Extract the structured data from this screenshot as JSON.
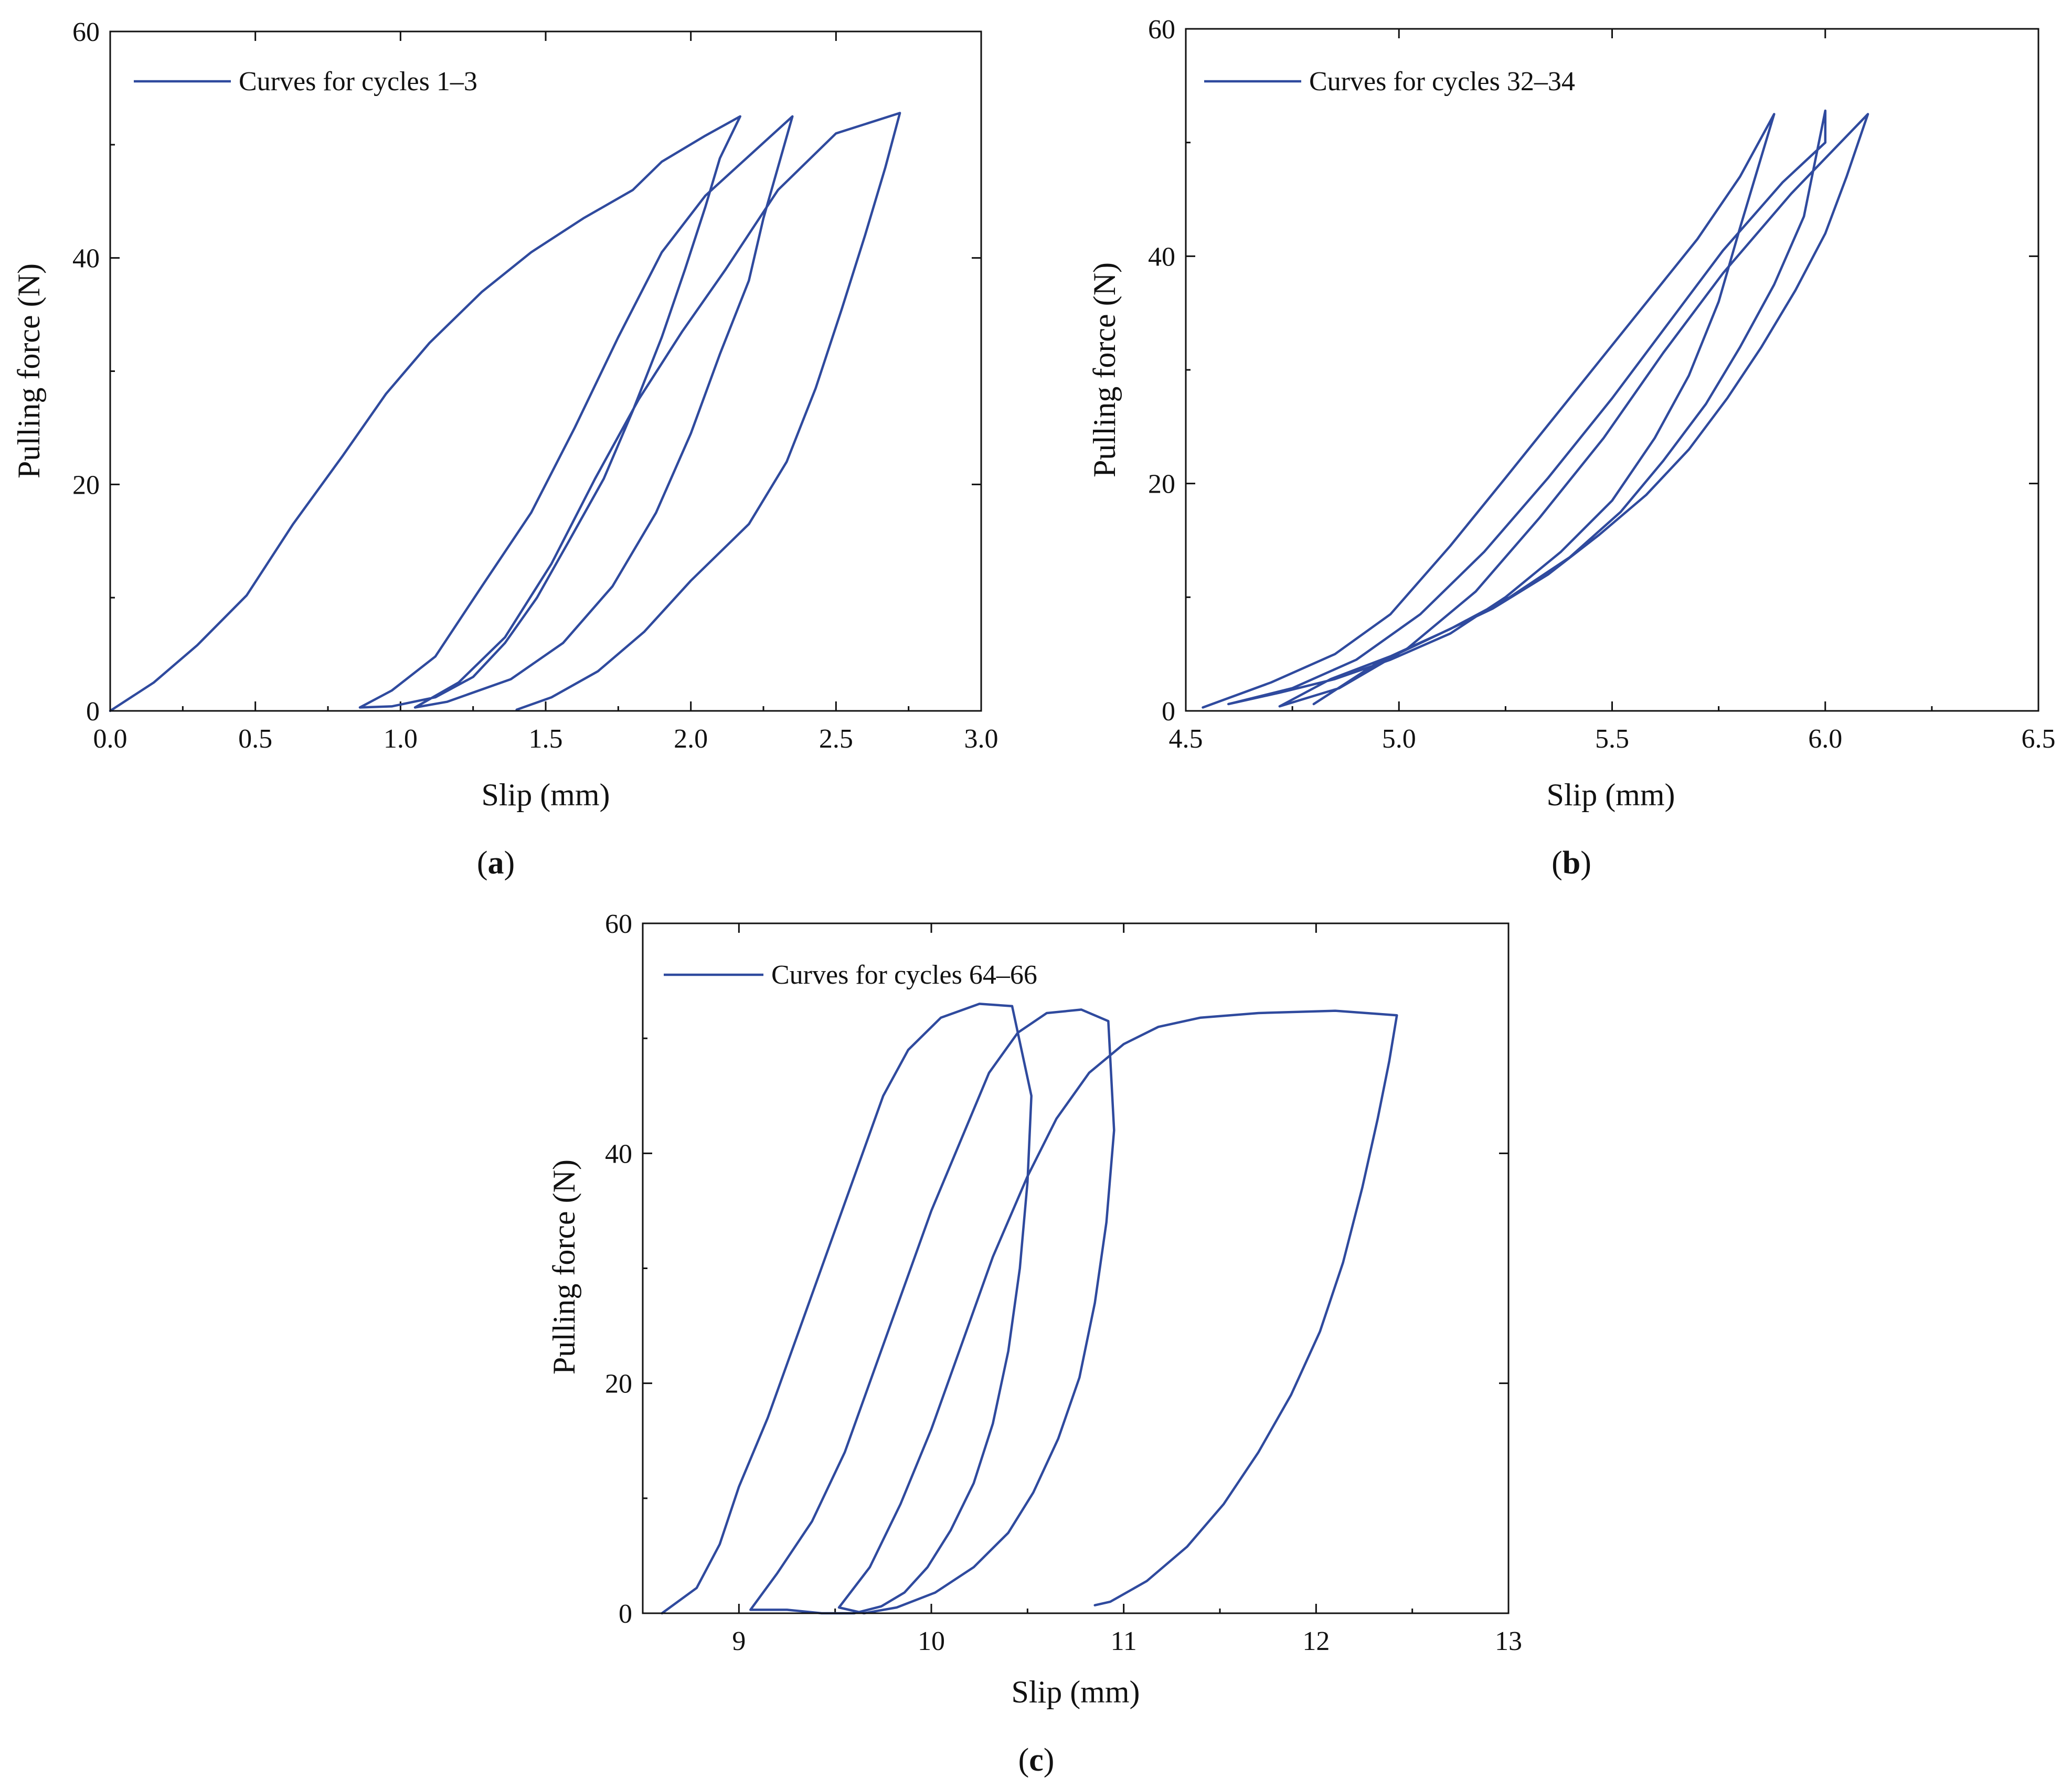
{
  "colors": {
    "series": "#2f4a9e",
    "axis": "#111111",
    "background": "#ffffff"
  },
  "chart_data": [
    {
      "id": "a",
      "type": "line",
      "caption_letter": "a",
      "title": "",
      "xlabel": "Slip (mm)",
      "ylabel": "Pulling force (N)",
      "xlim": [
        0.0,
        3.0
      ],
      "ylim": [
        0,
        60
      ],
      "xticks": [
        "0.0",
        "0.5",
        "1.0",
        "1.5",
        "2.0",
        "2.5",
        "3.0"
      ],
      "xtick_values": [
        0.0,
        0.5,
        1.0,
        1.5,
        2.0,
        2.5,
        3.0
      ],
      "yticks": [
        "0",
        "20",
        "40",
        "60"
      ],
      "ytick_values": [
        0,
        20,
        40,
        60
      ],
      "legend": "top-left",
      "series": [
        {
          "name": "Curves for cycles 1–3",
          "x": [
            0.0,
            0.15,
            0.3,
            0.47,
            0.63,
            0.8,
            0.95,
            1.1,
            1.28,
            1.45,
            1.63,
            1.8,
            1.9,
            2.05,
            2.17,
            2.1,
            2.05,
            1.98,
            1.9,
            1.8,
            1.7,
            1.58,
            1.47,
            1.36,
            1.25,
            1.12,
            0.97,
            0.86,
            0.97,
            1.12,
            1.28,
            1.45,
            1.6,
            1.75,
            1.9,
            2.05,
            2.2,
            2.35,
            2.3,
            2.25,
            2.2,
            2.1,
            2.0,
            1.88,
            1.73,
            1.56,
            1.38,
            1.16,
            1.05,
            1.2,
            1.36,
            1.52,
            1.67,
            1.82,
            1.97,
            2.12,
            2.3,
            2.5,
            2.72,
            2.67,
            2.6,
            2.52,
            2.43,
            2.33,
            2.2,
            2.0,
            1.84,
            1.68,
            1.52,
            1.4
          ],
          "y": [
            0.0,
            2.5,
            5.8,
            10.2,
            16.5,
            22.5,
            28.0,
            32.5,
            37.0,
            40.5,
            43.5,
            46.0,
            48.5,
            50.8,
            52.5,
            48.8,
            44.5,
            39.0,
            33.0,
            26.5,
            20.5,
            15.0,
            10.0,
            6.0,
            3.0,
            1.2,
            0.4,
            0.3,
            1.8,
            4.8,
            11.0,
            17.5,
            25.0,
            33.0,
            40.5,
            45.5,
            49.0,
            52.5,
            48.0,
            43.5,
            38.0,
            31.5,
            24.5,
            17.5,
            11.0,
            6.0,
            2.8,
            0.8,
            0.3,
            2.5,
            6.5,
            13.0,
            20.5,
            27.5,
            33.5,
            39.0,
            46.0,
            51.0,
            52.8,
            48.0,
            42.0,
            35.5,
            28.5,
            22.0,
            16.5,
            11.5,
            7.0,
            3.5,
            1.2,
            0.1
          ]
        }
      ]
    },
    {
      "id": "b",
      "type": "line",
      "caption_letter": "b",
      "title": "",
      "xlabel": "Slip (mm)",
      "ylabel": "Pulling force (N)",
      "xlim": [
        4.5,
        6.5
      ],
      "ylim": [
        0,
        60
      ],
      "xticks": [
        "4.5",
        "5.0",
        "5.5",
        "6.0",
        "6.5"
      ],
      "xtick_values": [
        4.5,
        5.0,
        5.5,
        6.0,
        6.5
      ],
      "yticks": [
        "0",
        "20",
        "40",
        "60"
      ],
      "ytick_values": [
        0,
        20,
        40,
        60
      ],
      "legend": "top-left",
      "series": [
        {
          "name": "Curves for cycles 32–34",
          "x": [
            4.54,
            4.7,
            4.85,
            4.98,
            5.12,
            5.25,
            5.4,
            5.55,
            5.7,
            5.8,
            5.88,
            5.84,
            5.8,
            5.75,
            5.68,
            5.6,
            5.5,
            5.38,
            5.25,
            5.12,
            4.98,
            4.85,
            4.72,
            4.6,
            4.75,
            4.9,
            5.05,
            5.2,
            5.35,
            5.5,
            5.63,
            5.76,
            5.9,
            6.0,
            6.0,
            5.95,
            5.88,
            5.8,
            5.72,
            5.62,
            5.52,
            5.4,
            5.26,
            5.12,
            4.98,
            4.84,
            4.72,
            4.86,
            5.02,
            5.18,
            5.33,
            5.48,
            5.62,
            5.76,
            5.92,
            6.1,
            6.05,
            6.0,
            5.93,
            5.85,
            5.77,
            5.68,
            5.58,
            5.47,
            5.35,
            5.22,
            5.08,
            4.94,
            4.8
          ],
          "y": [
            0.3,
            2.5,
            5.0,
            8.5,
            14.5,
            20.5,
            27.5,
            34.5,
            41.5,
            47.0,
            52.5,
            47.5,
            42.5,
            36.0,
            29.5,
            24.0,
            18.5,
            14.0,
            10.0,
            6.8,
            4.5,
            2.8,
            1.6,
            0.6,
            2.0,
            4.5,
            8.5,
            14.0,
            20.5,
            27.5,
            34.0,
            40.5,
            46.5,
            50.0,
            52.8,
            43.5,
            37.5,
            32.0,
            27.0,
            22.0,
            17.5,
            13.5,
            10.0,
            7.2,
            4.8,
            2.8,
            0.4,
            2.0,
            5.5,
            10.5,
            17.0,
            24.0,
            31.5,
            38.5,
            45.5,
            52.5,
            47.0,
            42.0,
            37.0,
            32.0,
            27.5,
            23.0,
            19.0,
            15.5,
            12.0,
            9.0,
            6.5,
            4.0,
            0.6
          ]
        }
      ]
    },
    {
      "id": "c",
      "type": "line",
      "caption_letter": "c",
      "title": "",
      "xlabel": "Slip (mm)",
      "ylabel": "Pulling force (N)",
      "xlim": [
        8.5,
        13.0
      ],
      "ylim": [
        0,
        60
      ],
      "xticks": [
        "9",
        "10",
        "11",
        "12",
        "13"
      ],
      "xtick_values": [
        9,
        10,
        11,
        12,
        13
      ],
      "yticks": [
        "0",
        "20",
        "40",
        "60"
      ],
      "ytick_values": [
        0,
        20,
        40,
        60
      ],
      "legend": "top-left",
      "series": [
        {
          "name": "Curves for cycles 64–66",
          "x": [
            8.6,
            8.78,
            8.9,
            9.0,
            9.15,
            9.3,
            9.45,
            9.6,
            9.75,
            9.88,
            10.05,
            10.25,
            10.42,
            10.52,
            10.5,
            10.46,
            10.4,
            10.32,
            10.22,
            10.1,
            9.98,
            9.86,
            9.74,
            9.6,
            9.43,
            9.25,
            9.06,
            9.2,
            9.38,
            9.55,
            9.7,
            9.85,
            10.0,
            10.15,
            10.3,
            10.45,
            10.6,
            10.78,
            10.92,
            10.95,
            10.91,
            10.85,
            10.77,
            10.66,
            10.53,
            10.4,
            10.22,
            10.02,
            9.82,
            9.65,
            9.52,
            9.68,
            9.84,
            10.0,
            10.16,
            10.32,
            10.5,
            10.65,
            10.82,
            11.0,
            11.18,
            11.4,
            11.7,
            12.1,
            12.42,
            12.38,
            12.32,
            12.24,
            12.14,
            12.02,
            11.87,
            11.7,
            11.52,
            11.33,
            11.12,
            10.93,
            10.85
          ],
          "y": [
            0.0,
            2.2,
            6.0,
            11.0,
            17.0,
            24.0,
            31.0,
            38.0,
            45.0,
            49.0,
            51.8,
            53.0,
            52.8,
            45.0,
            37.5,
            30.0,
            22.8,
            16.5,
            11.3,
            7.2,
            4.0,
            1.8,
            0.6,
            0.0,
            0.0,
            0.3,
            0.3,
            3.5,
            8.0,
            14.0,
            21.0,
            28.0,
            35.0,
            41.0,
            47.0,
            50.5,
            52.2,
            52.5,
            51.5,
            42.0,
            34.0,
            27.0,
            20.5,
            15.2,
            10.5,
            7.0,
            4.0,
            1.8,
            0.5,
            0.0,
            0.5,
            4.0,
            9.5,
            16.0,
            23.5,
            31.0,
            38.0,
            43.0,
            47.0,
            49.5,
            51.0,
            51.8,
            52.2,
            52.4,
            52.0,
            48.0,
            43.0,
            37.0,
            30.5,
            24.5,
            19.0,
            14.0,
            9.5,
            5.8,
            2.8,
            1.0,
            0.7
          ]
        }
      ]
    }
  ]
}
